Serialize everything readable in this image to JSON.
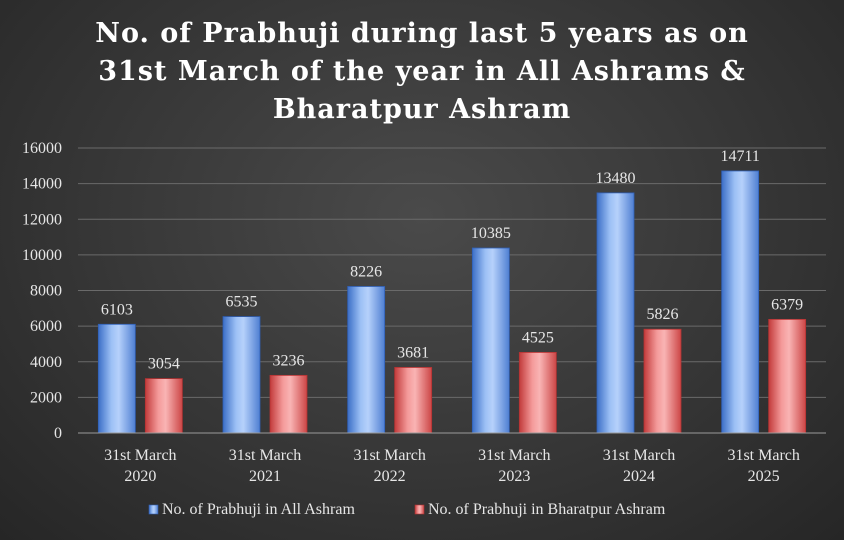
{
  "chart_data": {
    "type": "bar",
    "title_lines": [
      "No. of Prabhuji during last 5 years as on",
      "31st March of the year in All Ashrams &",
      "Bharatpur Ashram"
    ],
    "categories": [
      [
        "31st March",
        "2020"
      ],
      [
        "31st March",
        "2021"
      ],
      [
        "31st March",
        "2022"
      ],
      [
        "31st March",
        "2023"
      ],
      [
        "31st March",
        "2024"
      ],
      [
        "31st March",
        "2025"
      ]
    ],
    "series": [
      {
        "name": "No. of Prabhuji in All Ashram",
        "values": [
          6103,
          6535,
          8226,
          10385,
          13480,
          14711
        ],
        "color": "#6fa0e8"
      },
      {
        "name": "No. of Prabhuji in Bharatpur Ashram",
        "values": [
          3054,
          3236,
          3681,
          4525,
          5826,
          6379
        ],
        "color": "#e26868"
      }
    ],
    "yticks": [
      0,
      2000,
      4000,
      6000,
      8000,
      10000,
      12000,
      14000,
      16000
    ],
    "ylim": [
      0,
      16000
    ],
    "grid": true,
    "legend": "bottom",
    "data_labels": true
  }
}
